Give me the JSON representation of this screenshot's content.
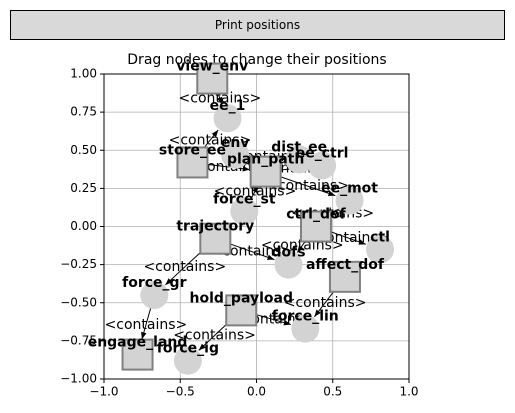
{
  "button": {
    "label": "Print positions"
  },
  "chart_data": {
    "type": "graph",
    "title": "Drag nodes to change their positions",
    "xlim": [
      -1,
      1
    ],
    "ylim": [
      -1,
      1
    ],
    "xticks": [
      {
        "value": -1,
        "label": "−1.0"
      },
      {
        "value": -0.5,
        "label": "−0.5"
      },
      {
        "value": 0,
        "label": "0.0"
      },
      {
        "value": 0.5,
        "label": "0.5"
      },
      {
        "value": 1,
        "label": "1.0"
      }
    ],
    "yticks": [
      {
        "value": -1,
        "label": "−1.00"
      },
      {
        "value": -0.75,
        "label": "−0.75"
      },
      {
        "value": -0.5,
        "label": "−0.50"
      },
      {
        "value": -0.25,
        "label": "−0.25"
      },
      {
        "value": 0,
        "label": "0.00"
      },
      {
        "value": 0.25,
        "label": "0.25"
      },
      {
        "value": 0.5,
        "label": "0.50"
      },
      {
        "value": 0.75,
        "label": "0.75"
      },
      {
        "value": 1,
        "label": "1.00"
      }
    ],
    "grid": true,
    "node_color": "#d3d3d3",
    "edge_color": "#000000",
    "nodes": [
      {
        "label": "view_env",
        "x": -0.29,
        "y": 0.97,
        "shape": "square"
      },
      {
        "label": "ee_1",
        "x": -0.19,
        "y": 0.71,
        "shape": "circle"
      },
      {
        "label": "env",
        "x": -0.14,
        "y": 0.47,
        "shape": "circle"
      },
      {
        "label": "dist_ee",
        "x": 0.28,
        "y": 0.44,
        "shape": "circle"
      },
      {
        "label": "store_ee",
        "x": -0.42,
        "y": 0.42,
        "shape": "square"
      },
      {
        "label": "plan_path",
        "x": 0.06,
        "y": 0.36,
        "shape": "square"
      },
      {
        "label": "ee_ctrl",
        "x": 0.43,
        "y": 0.4,
        "shape": "circle"
      },
      {
        "label": "ee_mot",
        "x": 0.61,
        "y": 0.17,
        "shape": "circle"
      },
      {
        "label": "force_st",
        "x": -0.08,
        "y": 0.1,
        "shape": "circle"
      },
      {
        "label": "ctrl_dof",
        "x": 0.39,
        "y": 0.0,
        "shape": "square"
      },
      {
        "label": "trajectory",
        "x": -0.27,
        "y": -0.08,
        "shape": "square"
      },
      {
        "label": "ctl",
        "x": 0.81,
        "y": -0.15,
        "shape": "circle"
      },
      {
        "label": "dofs",
        "x": 0.21,
        "y": -0.25,
        "shape": "circle"
      },
      {
        "label": "affect_dof",
        "x": 0.58,
        "y": -0.33,
        "shape": "square"
      },
      {
        "label": "force_gr",
        "x": -0.67,
        "y": -0.45,
        "shape": "circle"
      },
      {
        "label": "hold_payload",
        "x": -0.1,
        "y": -0.55,
        "shape": "square"
      },
      {
        "label": "force_lin",
        "x": 0.32,
        "y": -0.67,
        "shape": "circle"
      },
      {
        "label": "engage_land",
        "x": -0.78,
        "y": -0.84,
        "shape": "square"
      },
      {
        "label": "force_ig",
        "x": -0.45,
        "y": -0.88,
        "shape": "circle"
      }
    ],
    "edges": [
      {
        "source": 0,
        "target": 1,
        "label": "<contains>"
      },
      {
        "source": 4,
        "target": 1,
        "label": "<contains>"
      },
      {
        "source": 2,
        "target": 3,
        "label": "<contains>"
      },
      {
        "source": 5,
        "target": 6,
        "label": "<contains>"
      },
      {
        "source": 4,
        "target": 5,
        "label": "<contains>"
      },
      {
        "source": 5,
        "target": 7,
        "label": "<contains>"
      },
      {
        "source": 9,
        "target": 11,
        "label": "<contains>"
      },
      {
        "source": 10,
        "target": 14,
        "label": "<contains>"
      },
      {
        "source": 10,
        "target": 12,
        "label": "<contains>"
      },
      {
        "source": 13,
        "target": 16,
        "label": "<contains>"
      },
      {
        "source": 15,
        "target": 18,
        "label": "<contains>"
      },
      {
        "source": 14,
        "target": 17,
        "label": "<contains>"
      },
      {
        "source": 15,
        "target": 16,
        "label": "<contains>"
      },
      {
        "source": 9,
        "target": 12,
        "label": "<contains>"
      },
      {
        "source": 7,
        "target": 9,
        "label": "<contains>"
      },
      {
        "source": 8,
        "target": 5,
        "label": "<contains>"
      }
    ]
  }
}
